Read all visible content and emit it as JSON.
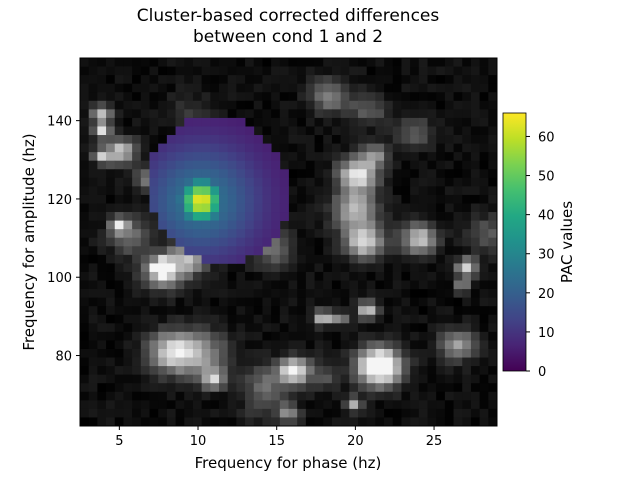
{
  "chart_data": {
    "type": "heatmap",
    "title_lines": [
      "Cluster-based corrected differences",
      "between cond 1 and 2"
    ],
    "xlabel": "Frequency for phase (hz)",
    "ylabel": "Frequency for amplitude (hz)",
    "x_range": [
      2.5,
      29
    ],
    "y_range": [
      62,
      156
    ],
    "x_ticks": [
      5,
      10,
      15,
      20,
      25
    ],
    "y_ticks": [
      80,
      100,
      120,
      140
    ],
    "grid": false,
    "background_colormap": "gray",
    "cluster": {
      "colormap": "viridis",
      "center": {
        "x": 10.2,
        "y": 119.5
      },
      "peak_value": 65,
      "approx_extent_x": [
        7.5,
        15.5
      ],
      "approx_extent_y": [
        103,
        142
      ]
    },
    "colorbar": {
      "label": "PAC values",
      "range": [
        0,
        66
      ],
      "ticks": [
        0,
        10,
        20,
        30,
        40,
        50,
        60
      ]
    }
  }
}
